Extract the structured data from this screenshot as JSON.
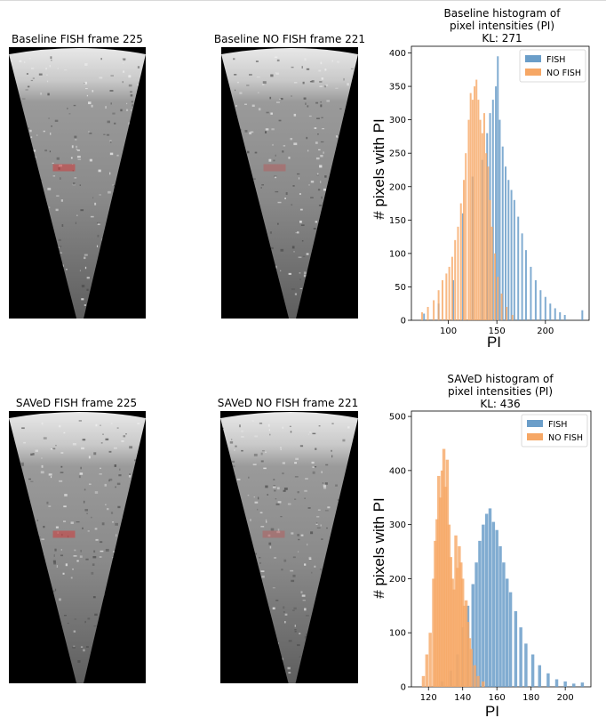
{
  "frames": {
    "baseline_fish_title": "Baseline FISH frame 225",
    "baseline_nofish_title": "Baseline NO FISH frame 221",
    "saved_fish_title": "SAVeD FISH frame 225",
    "saved_nofish_title": "SAVeD NO FISH frame 221"
  },
  "colors": {
    "fish": "#6b9ec9",
    "nofish": "#f6a765",
    "overlap": "#b0875f",
    "box": "#d23c3c"
  },
  "chart_data": [
    {
      "type": "bar",
      "title_line1": "Baseline histogram of",
      "title_line2": "pixel intensities (PI)",
      "kl": "KL: 271",
      "xlabel": "PI",
      "ylabel": "# pixels with PI",
      "xlim": [
        62,
        245
      ],
      "ylim": [
        0,
        410
      ],
      "xticks": [
        100,
        150,
        200
      ],
      "yticks": [
        0,
        50,
        100,
        150,
        200,
        250,
        300,
        350,
        400
      ],
      "legend_position": "top-right",
      "series": [
        {
          "name": "FISH",
          "bins": [
            [
              75,
              10
            ],
            [
              90,
              25
            ],
            [
              105,
              60
            ],
            [
              115,
              160
            ],
            [
              125,
              215
            ],
            [
              135,
              240
            ],
            [
              140,
              280
            ],
            [
              143,
              310
            ],
            [
              146,
              330
            ],
            [
              149,
              350
            ],
            [
              151,
              395
            ],
            [
              153,
              300
            ],
            [
              156,
              260
            ],
            [
              159,
              230
            ],
            [
              162,
              210
            ],
            [
              165,
              195
            ],
            [
              168,
              180
            ],
            [
              172,
              155
            ],
            [
              176,
              130
            ],
            [
              180,
              105
            ],
            [
              185,
              80
            ],
            [
              190,
              60
            ],
            [
              195,
              45
            ],
            [
              200,
              35
            ],
            [
              205,
              25
            ],
            [
              210,
              18
            ],
            [
              215,
              12
            ],
            [
              220,
              8
            ],
            [
              238,
              15
            ]
          ]
        },
        {
          "name": "NO FISH",
          "bins": [
            [
              73,
              12
            ],
            [
              79,
              20
            ],
            [
              85,
              30
            ],
            [
              90,
              45
            ],
            [
              94,
              60
            ],
            [
              98,
              70
            ],
            [
              101,
              80
            ],
            [
              104,
              95
            ],
            [
              107,
              120
            ],
            [
              110,
              140
            ],
            [
              113,
              175
            ],
            [
              116,
              210
            ],
            [
              118,
              250
            ],
            [
              121,
              300
            ],
            [
              123,
              340
            ],
            [
              125,
              330
            ],
            [
              127,
              350
            ],
            [
              129,
              360
            ],
            [
              131,
              330
            ],
            [
              133,
              300
            ],
            [
              135,
              280
            ],
            [
              137,
              310
            ],
            [
              139,
              250
            ],
            [
              141,
              230
            ],
            [
              143,
              180
            ],
            [
              145,
              140
            ],
            [
              148,
              100
            ],
            [
              151,
              65
            ],
            [
              155,
              40
            ],
            [
              160,
              20
            ],
            [
              166,
              8
            ]
          ]
        }
      ]
    },
    {
      "type": "bar",
      "title_line1": "SAVeD histogram of",
      "title_line2": "pixel intensities (PI)",
      "kl": "KL: 436",
      "xlabel": "PI",
      "ylabel": "# pixels with PI",
      "xlim": [
        110,
        215
      ],
      "ylim": [
        0,
        510
      ],
      "xticks": [
        120,
        140,
        160,
        180,
        200
      ],
      "yticks": [
        0,
        100,
        200,
        300,
        400,
        500
      ],
      "legend_position": "top-right",
      "series": [
        {
          "name": "FISH",
          "bins": [
            [
              128,
              10
            ],
            [
              133,
              30
            ],
            [
              137,
              60
            ],
            [
              140,
              110
            ],
            [
              143,
              150
            ],
            [
              146,
              190
            ],
            [
              148,
              230
            ],
            [
              150,
              270
            ],
            [
              152,
              300
            ],
            [
              154,
              320
            ],
            [
              156,
              330
            ],
            [
              158,
              305
            ],
            [
              160,
              290
            ],
            [
              162,
              260
            ],
            [
              164,
              230
            ],
            [
              166,
              200
            ],
            [
              168,
              175
            ],
            [
              171,
              140
            ],
            [
              174,
              110
            ],
            [
              177,
              80
            ],
            [
              181,
              60
            ],
            [
              185,
              40
            ],
            [
              190,
              25
            ],
            [
              195,
              14
            ],
            [
              200,
              10
            ],
            [
              205,
              6
            ],
            [
              210,
              8
            ]
          ]
        },
        {
          "name": "NO FISH",
          "bins": [
            [
              117,
              20
            ],
            [
              119,
              60
            ],
            [
              121,
              100
            ],
            [
              123,
              200
            ],
            [
              124,
              270
            ],
            [
              125,
              310
            ],
            [
              126,
              390
            ],
            [
              127,
              350
            ],
            [
              128,
              400
            ],
            [
              129,
              440
            ],
            [
              130,
              370
            ],
            [
              131,
              420
            ],
            [
              132,
              300
            ],
            [
              133,
              240
            ],
            [
              134,
              200
            ],
            [
              135,
              180
            ],
            [
              136,
              280
            ],
            [
              137,
              220
            ],
            [
              138,
              260
            ],
            [
              139,
              230
            ],
            [
              140,
              200
            ],
            [
              141,
              150
            ],
            [
              142,
              160
            ],
            [
              143,
              120
            ],
            [
              144,
              90
            ],
            [
              145,
              70
            ],
            [
              147,
              40
            ],
            [
              149,
              20
            ],
            [
              152,
              10
            ]
          ]
        }
      ]
    }
  ]
}
